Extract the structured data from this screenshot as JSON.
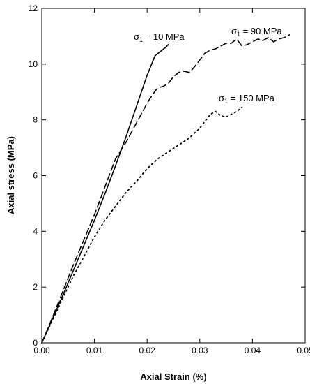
{
  "chart_data": {
    "type": "line",
    "xlabel": "Axial Strain (%)",
    "ylabel": "Axial stress (MPa)",
    "xlim": [
      0,
      0.05
    ],
    "ylim": [
      0,
      12
    ],
    "xticks": [
      0.0,
      0.01,
      0.02,
      0.03,
      0.04,
      0.05
    ],
    "xtick_labels": [
      "0.00",
      "0.01",
      "0.02",
      "0.03",
      "0.04",
      "0.05"
    ],
    "yticks": [
      0,
      2,
      4,
      6,
      8,
      10,
      12
    ],
    "ytick_labels": [
      "0",
      "2",
      "4",
      "6",
      "8",
      "10",
      "12"
    ],
    "grid": false,
    "series": [
      {
        "annotation": {
          "symbol": "σ",
          "subscript": "1",
          "rest": " = 10 MPa"
        },
        "line_style": "solid",
        "x": [
          0,
          0.002,
          0.004,
          0.006,
          0.008,
          0.01,
          0.012,
          0.014,
          0.016,
          0.018,
          0.02,
          0.0215,
          0.0225,
          0.0235,
          0.024
        ],
        "y": [
          0,
          0.85,
          1.7,
          2.6,
          3.5,
          4.4,
          5.35,
          6.35,
          7.4,
          8.5,
          9.6,
          10.3,
          10.45,
          10.6,
          10.7
        ]
      },
      {
        "annotation": {
          "symbol": "σ",
          "subscript": "1",
          "rest": " =  90 MPa"
        },
        "line_style": "dashed",
        "x": [
          0,
          0.002,
          0.004,
          0.006,
          0.008,
          0.01,
          0.012,
          0.014,
          0.016,
          0.018,
          0.02,
          0.021,
          0.022,
          0.023,
          0.024,
          0.025,
          0.026,
          0.027,
          0.028,
          0.029,
          0.03,
          0.031,
          0.032,
          0.033,
          0.034,
          0.035,
          0.036,
          0.037,
          0.038,
          0.039,
          0.04,
          0.041,
          0.042,
          0.043,
          0.044,
          0.045,
          0.046,
          0.047
        ],
        "y": [
          0,
          0.9,
          1.85,
          2.8,
          3.7,
          4.6,
          5.6,
          6.6,
          7.2,
          7.9,
          8.6,
          8.9,
          9.15,
          9.2,
          9.3,
          9.55,
          9.7,
          9.75,
          9.7,
          9.9,
          10.15,
          10.4,
          10.5,
          10.55,
          10.65,
          10.75,
          10.75,
          10.9,
          10.65,
          10.7,
          10.8,
          10.9,
          10.85,
          10.95,
          10.8,
          10.9,
          10.95,
          11.05
        ]
      },
      {
        "annotation": {
          "symbol": "σ",
          "subscript": "1",
          "rest": " = 150 MPa"
        },
        "line_style": "dotted",
        "x": [
          0,
          0.002,
          0.004,
          0.006,
          0.008,
          0.01,
          0.012,
          0.014,
          0.016,
          0.018,
          0.02,
          0.022,
          0.024,
          0.026,
          0.028,
          0.03,
          0.031,
          0.032,
          0.033,
          0.034,
          0.035,
          0.036,
          0.037,
          0.038
        ],
        "y": [
          0,
          0.8,
          1.6,
          2.4,
          3.1,
          3.8,
          4.4,
          4.9,
          5.4,
          5.8,
          6.25,
          6.6,
          6.85,
          7.1,
          7.35,
          7.7,
          7.95,
          8.2,
          8.3,
          8.15,
          8.1,
          8.2,
          8.3,
          8.45
        ]
      }
    ]
  }
}
